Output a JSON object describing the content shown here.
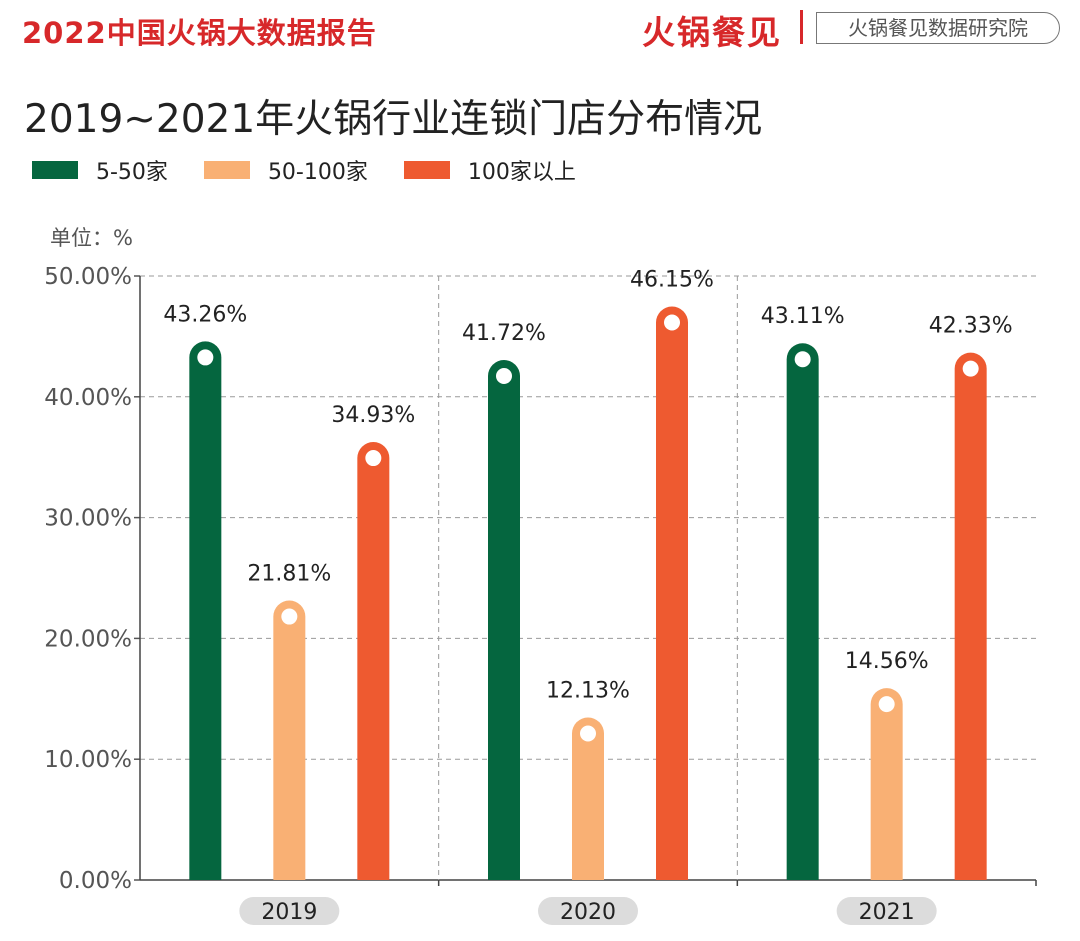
{
  "header": {
    "report_title": "2022中国火锅大数据报告",
    "brand": "火锅餐见",
    "institute": "火锅餐见数据研究院"
  },
  "title": "2019~2021年火锅行业连锁门店分布情况",
  "unit": "单位：%",
  "colors": {
    "brand_red": "#d7282a",
    "series_5_50": "#05663f",
    "series_50_100": "#f9b074",
    "series_100_plus": "#ee5a30",
    "year_pill": "#dcdcdc"
  },
  "chart_data": {
    "type": "bar",
    "categories": [
      "2019",
      "2020",
      "2021"
    ],
    "series": [
      {
        "name": "5-50家",
        "values": [
          43.26,
          41.72,
          43.11
        ],
        "labels": [
          "43.26%",
          "41.72%",
          "43.11%"
        ]
      },
      {
        "name": "50-100家",
        "values": [
          21.81,
          12.13,
          14.56
        ],
        "labels": [
          "21.81%",
          "12.13%",
          "14.56%"
        ]
      },
      {
        "name": "100家以上",
        "values": [
          34.93,
          46.15,
          42.33
        ],
        "labels": [
          "34.93%",
          "46.15%",
          "42.33%"
        ]
      }
    ],
    "ylim": [
      0,
      50
    ],
    "yticks": [
      0,
      10,
      20,
      30,
      40,
      50
    ],
    "ytick_labels": [
      "0.00%",
      "10.00%",
      "20.00%",
      "30.00%",
      "40.00%",
      "50.00%"
    ],
    "grid": true,
    "legend_position": "top-left"
  }
}
